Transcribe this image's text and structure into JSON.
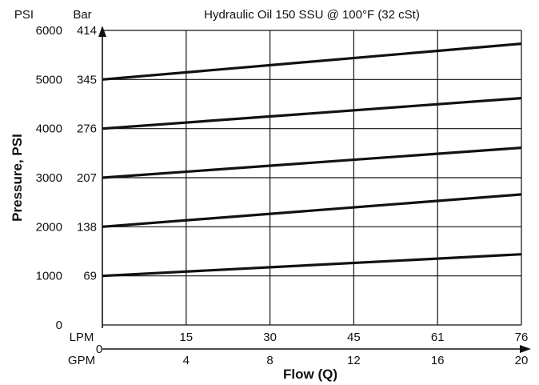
{
  "chart_data": {
    "type": "line",
    "title": "Hydraulic Oil 150 SSU @ 100°F (32 cSt)",
    "ylabel": "Pressure, PSI",
    "xlabel": "Flow (Q)",
    "y_unit_primary": "PSI",
    "y_unit_secondary": "Bar",
    "x_unit_primary": "LPM",
    "x_unit_secondary": "GPM",
    "ylim": [
      0,
      6000
    ],
    "xlim": [
      0,
      20
    ],
    "grid": true,
    "y_ticks_psi": [
      "6000",
      "5000",
      "4000",
      "3000",
      "2000",
      "1000",
      "0"
    ],
    "y_ticks_psi_values": [
      6000,
      5000,
      4000,
      3000,
      2000,
      1000,
      0
    ],
    "y_ticks_bar": [
      "414",
      "345",
      "276",
      "207",
      "138",
      "69"
    ],
    "y_ticks_bar_values": [
      6000,
      5000,
      4000,
      3000,
      2000,
      1000
    ],
    "x_ticks_lpm": [
      "15",
      "30",
      "45",
      "61",
      "76"
    ],
    "x_ticks_gpm": [
      "4",
      "8",
      "12",
      "16",
      "20"
    ],
    "x_ticks_values": [
      4,
      8,
      12,
      16,
      20
    ],
    "x_origin_label": "0",
    "series": [
      {
        "x": [
          0,
          20
        ],
        "y": [
          5000,
          5730
        ]
      },
      {
        "x": [
          0,
          20
        ],
        "y": [
          4000,
          4620
        ]
      },
      {
        "x": [
          0,
          20
        ],
        "y": [
          3000,
          3610
        ]
      },
      {
        "x": [
          0,
          20
        ],
        "y": [
          2000,
          2660
        ]
      },
      {
        "x": [
          0,
          20
        ],
        "y": [
          1000,
          1440
        ]
      }
    ]
  }
}
